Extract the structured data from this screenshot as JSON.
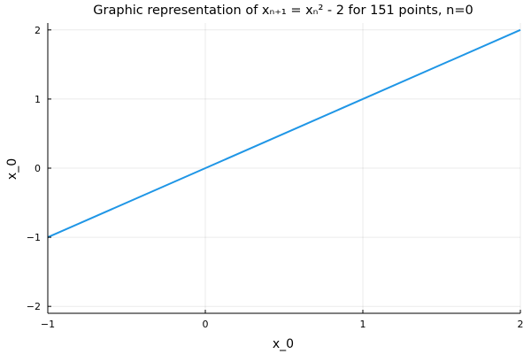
{
  "chart_data": {
    "type": "line",
    "title": "Graphic representation of xₙ₊₁ = xₙ² - 2 for 151 points, n=0",
    "xlabel": "x_0",
    "ylabel": "x_0",
    "xlim": [
      -1,
      2
    ],
    "ylim": [
      -2.1,
      2.1
    ],
    "xticks": [
      -1,
      0,
      1,
      2
    ],
    "yticks": [
      -2,
      -1,
      0,
      1,
      2
    ],
    "xtick_labels": [
      "−1",
      "0",
      "1",
      "2"
    ],
    "ytick_labels": [
      "−2",
      "−1",
      "0",
      "1",
      "2"
    ],
    "grid": true,
    "legend": "none",
    "series": [
      {
        "color": "#1f96e6",
        "x": [
          -1,
          2
        ],
        "y": [
          -1,
          2
        ]
      }
    ]
  }
}
